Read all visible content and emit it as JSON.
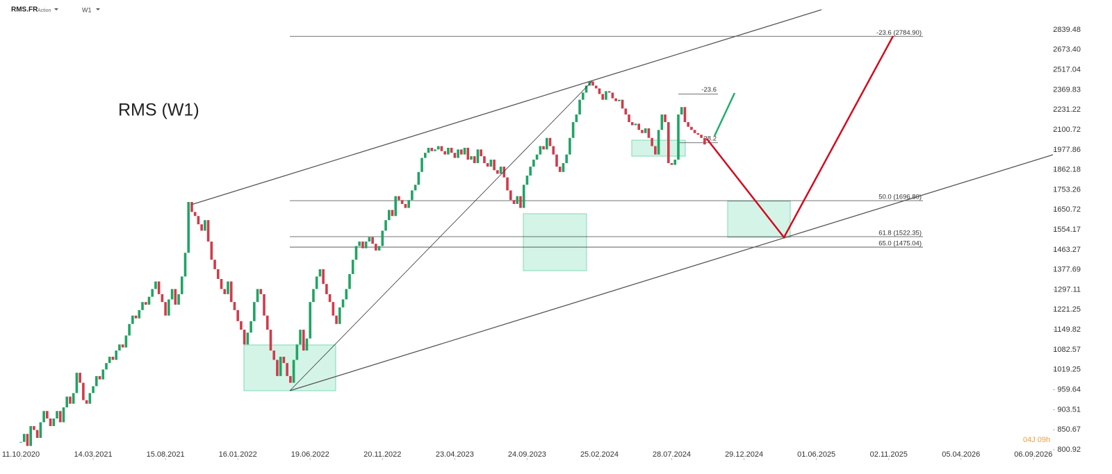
{
  "header": {
    "symbol": "RMS.FR",
    "kind": "Action",
    "timeframe": "W1"
  },
  "chart_data": {
    "type": "candlestick",
    "title": "RMS (W1)",
    "timer": "04J 09h",
    "log_scale": true,
    "up_color": "#1fa463",
    "down_color": "#d23a4a",
    "ylim": [
      800.92,
      2839.48
    ],
    "yticks": [
      2839.48,
      {
        "value": 2673.4,
        "label": "2673.40"
      },
      2517.04,
      2369.83,
      2231.22,
      2100.72,
      1977.86,
      1862.18,
      1753.26,
      1650.72,
      1554.17,
      1463.27,
      1377.69,
      1297.11,
      1221.25,
      1149.82,
      1082.57,
      1019.25,
      959.64,
      903.51,
      850.67,
      800.92
    ],
    "xticks": [
      "11.10.2020",
      "14.03.2021",
      "15.08.2021",
      "16.01.2022",
      "19.06.2022",
      "20.11.2022",
      "23.04.2023",
      "24.09.2023",
      "25.02.2024",
      "28.07.2024",
      "29.12.2024",
      "01.06.2025",
      "02.11.2025",
      "05.04.2026",
      "06.09.2026"
    ],
    "fib_levels": [
      {
        "level": -23.6,
        "price": 2784.9,
        "label": "-23.6 (2784.90)"
      },
      {
        "level": 50.0,
        "price": 1696.8,
        "label": "50.0 (1696.80)"
      },
      {
        "level": 61.8,
        "price": 1522.35,
        "label": "61.8 (1522.35)"
      },
      {
        "level": 65.0,
        "price": 1475.04,
        "label": "65.0 (1475.04)"
      }
    ],
    "short_fib_levels": [
      {
        "level": -23.6,
        "price": 2340,
        "label": "-23.6"
      },
      {
        "level": 38.2,
        "price": 2020,
        "label": "38.2"
      }
    ],
    "values": [
      820,
      840,
      810,
      860,
      850,
      830,
      870,
      900,
      880,
      860,
      880,
      900,
      870,
      910,
      940,
      920,
      950,
      1010,
      980,
      930,
      920,
      950,
      970,
      1000,
      990,
      1020,
      1040,
      1060,
      1050,
      1080,
      1100,
      1090,
      1130,
      1170,
      1200,
      1190,
      1220,
      1250,
      1240,
      1270,
      1300,
      1330,
      1280,
      1250,
      1200,
      1260,
      1300,
      1240,
      1280,
      1350,
      1450,
      1690,
      1640,
      1620,
      1580,
      1550,
      1600,
      1500,
      1420,
      1380,
      1340,
      1300,
      1280,
      1330,
      1250,
      1220,
      1180,
      1150,
      1100,
      1140,
      1180,
      1250,
      1300,
      1280,
      1200,
      1150,
      1080,
      1050,
      1000,
      1060,
      1040,
      1000,
      980,
      1050,
      1100,
      1150,
      1080,
      1120,
      1250,
      1300,
      1350,
      1380,
      1320,
      1280,
      1250,
      1200,
      1170,
      1230,
      1260,
      1300,
      1360,
      1420,
      1480,
      1500,
      1470,
      1500,
      1520,
      1490,
      1460,
      1480,
      1550,
      1600,
      1650,
      1620,
      1720,
      1700,
      1680,
      1660,
      1700,
      1750,
      1780,
      1850,
      1930,
      1960,
      1990,
      1970,
      1980,
      2000,
      1970,
      1950,
      1990,
      1960,
      1930,
      1980,
      1950,
      1990,
      1920,
      1940,
      1900,
      1980,
      1940,
      1900,
      1880,
      1920,
      1860,
      1840,
      1880,
      1820,
      1750,
      1700,
      1680,
      1720,
      1660,
      1780,
      1830,
      1880,
      1920,
      1950,
      2000,
      1980,
      2050,
      2000,
      1950,
      1880,
      1850,
      1900,
      1950,
      2050,
      2150,
      2200,
      2300,
      2350,
      2400,
      2430,
      2400,
      2380,
      2340,
      2300,
      2360,
      2350,
      2310,
      2290,
      2300,
      2240,
      2200,
      2150,
      2130,
      2140,
      2100,
      2080,
      2110,
      2050,
      2000,
      1950,
      2100,
      2200,
      2150,
      1900,
      1890,
      1920,
      2200,
      2250,
      2150,
      2120,
      2100,
      2080,
      2070,
      2050,
      2010
    ]
  }
}
